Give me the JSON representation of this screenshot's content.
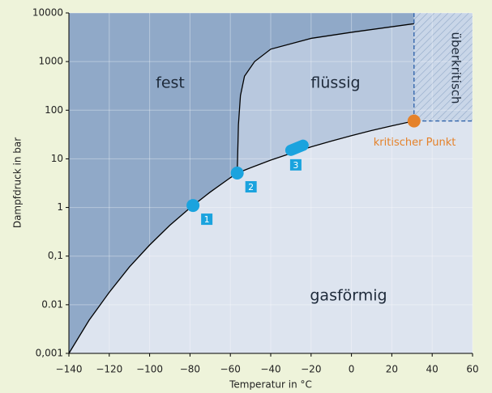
{
  "chart_data": {
    "type": "phase-diagram",
    "y_label": "Dampfdruck in bar",
    "x_label": "Temperatur in °C",
    "log_y": true,
    "grid": true,
    "xlim": [
      -140,
      60
    ],
    "ylim": [
      0.001,
      10000
    ],
    "xticks": [
      {
        "value": -140,
        "label": "−140"
      },
      {
        "value": -120,
        "label": "−120"
      },
      {
        "value": -100,
        "label": "−100"
      },
      {
        "value": -80,
        "label": "−80"
      },
      {
        "value": -60,
        "label": "−60"
      },
      {
        "value": -40,
        "label": "−40"
      },
      {
        "value": -20,
        "label": "−20"
      },
      0,
      20,
      40,
      60
    ],
    "yticks": [
      {
        "value": 0.001,
        "label": "0,001"
      },
      0.01,
      {
        "value": 0.1,
        "label": "0,1"
      },
      1,
      10,
      100,
      1000,
      10000
    ],
    "curves": [
      {
        "color": "#000000",
        "x": [
          -140,
          -130,
          -120,
          -110,
          -100,
          -90,
          -80,
          -70,
          -60,
          -56.6
        ],
        "values": [
          0.001,
          0.0048,
          0.018,
          0.06,
          0.169,
          0.43,
          0.98,
          2.07,
          4.09,
          5.1
        ]
      },
      {
        "color": "#000000",
        "x": [
          -56.6,
          -50,
          -40,
          -30,
          -20,
          -10,
          0,
          10,
          20,
          31
        ],
        "values": [
          5.1,
          6.55,
          9.4,
          13,
          17.6,
          23.2,
          30,
          38.2,
          47.7,
          60
        ]
      },
      {
        "color": "#000000",
        "x": [
          -56.6,
          -56,
          -55,
          -53,
          -48,
          -40,
          -20,
          0,
          31
        ],
        "values": [
          5.1,
          50,
          200,
          500,
          1000,
          1800,
          3000,
          4000,
          6000
        ]
      }
    ],
    "regions": {
      "solid": {
        "label": "fest",
        "color": "#90a9c8"
      },
      "liquid": {
        "label": "flüssig",
        "color": "#b8c8de"
      },
      "gas": {
        "label": "gasförmig",
        "color": "#dde4ef"
      },
      "supercritical": {
        "label": "überkritisch",
        "color": "#c9d6e8"
      }
    },
    "point_color": "#1aa3de",
    "points": [
      {
        "label": "1",
        "x": -78.5,
        "value": 1.1
      },
      {
        "label": "2",
        "x": -56.6,
        "value": 5.1
      },
      {
        "label": "3",
        "x": [
          -30,
          -24
        ],
        "values": [
          15,
          19
        ]
      }
    ],
    "critical_point": {
      "label": "kritischer Punkt",
      "x": 31,
      "value": 60,
      "color": "#e5822a"
    }
  }
}
